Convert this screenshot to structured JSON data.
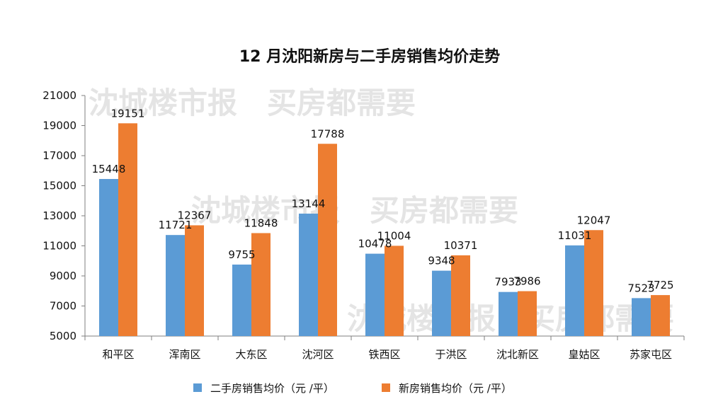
{
  "chart_data": {
    "type": "bar",
    "title": "12 月沈阳新房与二手房销售均价走势",
    "categories": [
      "和平区",
      "浑南区",
      "大东区",
      "沈河区",
      "铁西区",
      "于洪区",
      "沈北新区",
      "皇姑区",
      "苏家屯区"
    ],
    "series": [
      {
        "name": "二手房销售均价（元 /平）",
        "color": "#5b9bd5",
        "values": [
          15448,
          11721,
          9755,
          13144,
          10478,
          9348,
          7933,
          11031,
          7523
        ]
      },
      {
        "name": "新房销售均价（元 /平）",
        "color": "#ed7d31",
        "values": [
          19151,
          12367,
          11848,
          17788,
          11004,
          10371,
          7986,
          12047,
          7725
        ]
      }
    ],
    "ylim": [
      5000,
      21000
    ],
    "yticks": [
      5000,
      7000,
      9000,
      11000,
      13000,
      15000,
      17000,
      19000,
      21000
    ],
    "xlabel": "",
    "ylabel": "",
    "grid": false,
    "legend_position": "bottom"
  },
  "watermark": "沈城楼市报　买房都需要"
}
